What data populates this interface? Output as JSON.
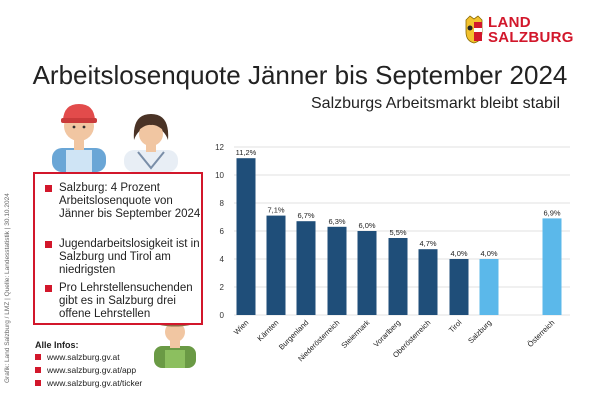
{
  "logo": {
    "line1": "LAND",
    "line2": "SALZBURG"
  },
  "header": {
    "title": "Arbeitslosenquote Jänner bis September 2024",
    "subtitle": "Salzburgs Arbeitsmarkt bleibt stabil"
  },
  "credit": "Grafik: Land Salzburg / LMZ | Quelle: Landesstatistik | 30.10.2024",
  "info_box": {
    "bullets": [
      "Salzburg: 4 Prozent Arbeitslosenquote von Jänner bis September 2024",
      "Jugendarbeitslosigkeit ist in Salzburg und Tirol am niedrigsten",
      "Pro Lehrstellensuchenden gibt es in Salzburg drei offene Lehrstellen"
    ]
  },
  "infos": {
    "title": "Alle Infos:",
    "links": [
      "www.salzburg.gv.at",
      "www.salzburg.gv.at/app",
      "www.salzburg.gv.at/ticker"
    ]
  },
  "colors": {
    "accent": "#d2172b",
    "bar_dark": "#1f4e79",
    "bar_light": "#5bb8ea",
    "grid": "#d9d9d9"
  },
  "chart_data": {
    "type": "bar",
    "categories": [
      "Wien",
      "Kärnten",
      "Burgenland",
      "Niederösterreich",
      "Steiermark",
      "Vorarlberg",
      "Oberösterreich",
      "Tirol",
      "Salzburg",
      "Österreich"
    ],
    "values": [
      11.2,
      7.1,
      6.7,
      6.3,
      6.0,
      5.5,
      4.7,
      4.0,
      4.0,
      6.9
    ],
    "value_labels": [
      "11,2%",
      "7,1%",
      "6,7%",
      "6,3%",
      "6,0%",
      "5,5%",
      "4,7%",
      "4,0%",
      "4,0%",
      "6,9%"
    ],
    "highlight": [
      "Salzburg",
      "Österreich"
    ],
    "ylim": [
      0,
      12
    ],
    "yticks": [
      0,
      2,
      4,
      6,
      8,
      10,
      12
    ],
    "grid": true,
    "title": "",
    "xlabel": "",
    "ylabel": ""
  }
}
